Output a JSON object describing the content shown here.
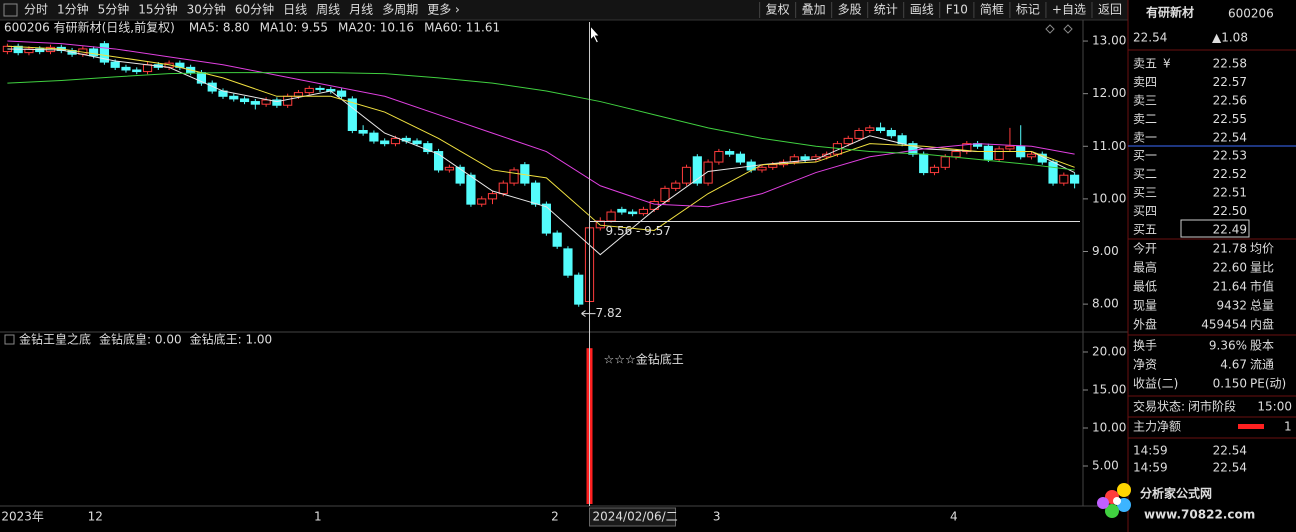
{
  "toolbar": {
    "left": [
      "分时",
      "1分钟",
      "5分钟",
      "15分钟",
      "30分钟",
      "60分钟",
      "日线",
      "周线",
      "月线",
      "多周期",
      "更多 ›"
    ],
    "selected_index": 6,
    "right": [
      "复权",
      "叠加",
      "多股",
      "统计",
      "画线",
      "F10",
      "简框",
      "标记",
      "+自选",
      "返回"
    ]
  },
  "main": {
    "type": "candlestick",
    "title": "600206 有研新材(日线,前复权)",
    "up_color": "#ff3c3c",
    "down_color": "#54fcfc",
    "grid": false,
    "ylim": [
      7.47,
      13.21
    ],
    "yticks": [
      {
        "value": 8,
        "label": "8.00"
      },
      {
        "value": 9,
        "label": "9.00"
      },
      {
        "value": 10,
        "label": "10.00"
      },
      {
        "value": 11,
        "label": "11.00"
      },
      {
        "value": 12,
        "label": "12.00"
      },
      {
        "value": 13,
        "label": "13.00"
      }
    ],
    "candles": [
      [
        12.8,
        12.95,
        12.75,
        12.9
      ],
      [
        12.9,
        12.95,
        12.73,
        12.78
      ],
      [
        12.78,
        12.9,
        12.73,
        12.85
      ],
      [
        12.85,
        12.9,
        12.75,
        12.8
      ],
      [
        12.8,
        12.93,
        12.75,
        12.88
      ],
      [
        12.88,
        12.93,
        12.77,
        12.82
      ],
      [
        12.82,
        12.87,
        12.7,
        12.75
      ],
      [
        12.75,
        12.9,
        12.7,
        12.85
      ],
      [
        12.85,
        12.9,
        12.67,
        12.72
      ],
      [
        12.95,
        13.0,
        12.55,
        12.6
      ],
      [
        12.6,
        12.65,
        12.45,
        12.5
      ],
      [
        12.5,
        12.55,
        12.4,
        12.45
      ],
      [
        12.45,
        12.5,
        12.37,
        12.42
      ],
      [
        12.42,
        12.6,
        12.37,
        12.55
      ],
      [
        12.55,
        12.6,
        12.45,
        12.5
      ],
      [
        12.5,
        12.63,
        12.45,
        12.58
      ],
      [
        12.58,
        12.63,
        12.45,
        12.5
      ],
      [
        12.5,
        12.55,
        12.35,
        12.4
      ],
      [
        12.4,
        12.45,
        12.15,
        12.2
      ],
      [
        12.2,
        12.25,
        12.0,
        12.05
      ],
      [
        12.05,
        12.1,
        11.9,
        11.95
      ],
      [
        11.95,
        12.0,
        11.85,
        11.9
      ],
      [
        11.9,
        11.95,
        11.8,
        11.85
      ],
      [
        11.85,
        11.9,
        11.7,
        11.8
      ],
      [
        11.8,
        11.93,
        11.75,
        11.88
      ],
      [
        11.88,
        11.93,
        11.73,
        11.78
      ],
      [
        11.78,
        12.0,
        11.73,
        11.95
      ],
      [
        11.95,
        12.07,
        11.9,
        12.02
      ],
      [
        12.02,
        12.15,
        11.97,
        12.1
      ],
      [
        12.1,
        12.15,
        12.03,
        12.08
      ],
      [
        12.08,
        12.13,
        12.0,
        12.05
      ],
      [
        12.05,
        12.1,
        11.9,
        11.95
      ],
      [
        11.9,
        11.95,
        11.25,
        11.3
      ],
      [
        11.3,
        11.4,
        11.2,
        11.25
      ],
      [
        11.25,
        11.3,
        11.05,
        11.1
      ],
      [
        11.1,
        11.15,
        11.0,
        11.05
      ],
      [
        11.05,
        11.2,
        11.0,
        11.15
      ],
      [
        11.15,
        11.2,
        11.05,
        11.1
      ],
      [
        11.1,
        11.15,
        11.0,
        11.05
      ],
      [
        11.05,
        11.1,
        10.85,
        10.9
      ],
      [
        10.9,
        10.95,
        10.5,
        10.55
      ],
      [
        10.55,
        10.65,
        10.5,
        10.6
      ],
      [
        10.6,
        10.65,
        10.25,
        10.3
      ],
      [
        10.45,
        10.5,
        9.85,
        9.9
      ],
      [
        9.9,
        10.05,
        9.85,
        10.0
      ],
      [
        10.0,
        10.15,
        9.9,
        10.1
      ],
      [
        10.1,
        10.35,
        10.05,
        10.3
      ],
      [
        10.3,
        10.6,
        10.25,
        10.55
      ],
      [
        10.65,
        10.7,
        10.25,
        10.3
      ],
      [
        10.3,
        10.35,
        9.85,
        9.9
      ],
      [
        9.9,
        9.95,
        9.3,
        9.35
      ],
      [
        9.35,
        9.4,
        9.05,
        9.1
      ],
      [
        9.05,
        9.1,
        8.5,
        8.55
      ],
      [
        8.55,
        8.6,
        7.95,
        8.0
      ],
      [
        8.05,
        9.5,
        7.82,
        9.45
      ],
      [
        9.45,
        9.65,
        9.4,
        9.58
      ],
      [
        9.58,
        9.8,
        9.55,
        9.75
      ],
      [
        9.8,
        9.85,
        9.7,
        9.75
      ],
      [
        9.75,
        9.8,
        9.67,
        9.72
      ],
      [
        9.72,
        9.85,
        9.68,
        9.8
      ],
      [
        9.8,
        10.0,
        9.75,
        9.95
      ],
      [
        9.95,
        10.25,
        9.9,
        10.2
      ],
      [
        10.2,
        10.35,
        10.15,
        10.3
      ],
      [
        10.3,
        10.65,
        10.25,
        10.6
      ],
      [
        10.8,
        10.85,
        10.25,
        10.3
      ],
      [
        10.3,
        10.75,
        10.25,
        10.7
      ],
      [
        10.7,
        10.95,
        10.65,
        10.9
      ],
      [
        10.9,
        10.95,
        10.8,
        10.85
      ],
      [
        10.85,
        10.9,
        10.65,
        10.7
      ],
      [
        10.7,
        10.75,
        10.5,
        10.55
      ],
      [
        10.55,
        10.65,
        10.5,
        10.6
      ],
      [
        10.6,
        10.7,
        10.55,
        10.65
      ],
      [
        10.65,
        10.75,
        10.6,
        10.7
      ],
      [
        10.7,
        10.85,
        10.65,
        10.8
      ],
      [
        10.8,
        10.85,
        10.7,
        10.75
      ],
      [
        10.75,
        10.85,
        10.7,
        10.8
      ],
      [
        10.8,
        10.9,
        10.75,
        10.85
      ],
      [
        10.85,
        11.1,
        10.8,
        11.05
      ],
      [
        11.05,
        11.2,
        11.0,
        11.15
      ],
      [
        11.15,
        11.35,
        11.1,
        11.3
      ],
      [
        11.3,
        11.4,
        11.25,
        11.35
      ],
      [
        11.35,
        11.45,
        11.25,
        11.3
      ],
      [
        11.3,
        11.35,
        11.15,
        11.2
      ],
      [
        11.2,
        11.25,
        11.0,
        11.05
      ],
      [
        11.05,
        11.1,
        10.8,
        10.85
      ],
      [
        10.85,
        10.9,
        10.45,
        10.5
      ],
      [
        10.5,
        10.65,
        10.45,
        10.6
      ],
      [
        10.6,
        10.85,
        10.55,
        10.8
      ],
      [
        10.8,
        10.95,
        10.75,
        10.9
      ],
      [
        10.9,
        11.1,
        10.85,
        11.05
      ],
      [
        11.05,
        11.1,
        10.95,
        11.0
      ],
      [
        11.0,
        11.05,
        10.7,
        10.75
      ],
      [
        10.75,
        11.0,
        10.7,
        10.95
      ],
      [
        10.95,
        11.35,
        10.9,
        11.0
      ],
      [
        11.0,
        11.4,
        10.75,
        10.8
      ],
      [
        10.8,
        10.9,
        10.75,
        10.85
      ],
      [
        10.85,
        10.9,
        10.65,
        10.7
      ],
      [
        10.7,
        10.75,
        10.25,
        10.3
      ],
      [
        10.3,
        10.5,
        10.25,
        10.45
      ],
      [
        10.45,
        10.5,
        10.2,
        10.3
      ]
    ],
    "ma_x": [
      0,
      5,
      10,
      15,
      20,
      25,
      30,
      35,
      40,
      45,
      50,
      55,
      60,
      65,
      70,
      75,
      80,
      85,
      90,
      95,
      99
    ],
    "ma": [
      {
        "name": "MA5: 8.80",
        "color": "#e8e8e8",
        "values": [
          12.85,
          12.83,
          12.62,
          12.5,
          12.05,
          11.85,
          12.05,
          11.25,
          10.85,
          10.15,
          9.85,
          8.94,
          9.79,
          10.52,
          10.65,
          10.75,
          11.2,
          10.95,
          10.9,
          10.9,
          10.5
        ]
      },
      {
        "name": "MA10: 9.55",
        "color": "#f0e040",
        "values": [
          12.9,
          12.85,
          12.7,
          12.55,
          12.3,
          11.95,
          11.95,
          11.65,
          11.15,
          10.55,
          10.4,
          9.5,
          9.4,
          10.1,
          10.65,
          10.7,
          11.05,
          11.0,
          10.9,
          10.9,
          10.6
        ]
      },
      {
        "name": "MA20: 10.16",
        "color": "#e040e0",
        "values": [
          13.0,
          12.95,
          12.85,
          12.7,
          12.55,
          12.35,
          12.15,
          11.95,
          11.6,
          11.25,
          10.9,
          10.25,
          9.9,
          9.85,
          10.1,
          10.5,
          10.8,
          10.95,
          11.05,
          11.0,
          10.85
        ]
      },
      {
        "name": "MA60: 11.61",
        "color": "#40d040",
        "values": [
          12.2,
          12.25,
          12.32,
          12.38,
          12.4,
          12.4,
          12.4,
          12.38,
          12.3,
          12.2,
          12.05,
          11.85,
          11.6,
          11.35,
          11.15,
          11.0,
          10.9,
          10.85,
          10.75,
          10.65,
          10.55
        ]
      }
    ],
    "low_index": 54,
    "level_line": {
      "value": 9.57,
      "label": "9.56 - 9.57"
    }
  },
  "cursor": {
    "index": 54,
    "label": "2024/02/06/二"
  },
  "x_labels": [
    {
      "at": 0,
      "label": "2023年"
    },
    {
      "at": 8,
      "label": "12"
    },
    {
      "at": 29,
      "label": "1"
    },
    {
      "at": 51,
      "label": "2"
    },
    {
      "at": 66,
      "label": "3"
    },
    {
      "at": 88,
      "label": "4"
    }
  ],
  "indicator": {
    "type": "bar",
    "title": "金钻王皇之底",
    "legend": [
      {
        "text": "金钻底皇: 0.00",
        "color": "#e040e0"
      },
      {
        "text": "金钻底王: 1.00",
        "color": "#ff3c3c"
      }
    ],
    "bars": [
      {
        "index": 54,
        "value": 20.5
      }
    ],
    "color": "#ff2020",
    "signal_label": "☆☆☆金钻底王",
    "ylim": [
      0,
      21.84
    ],
    "yticks": [
      {
        "value": 5,
        "label": "5.00"
      },
      {
        "value": 10,
        "label": "10.00"
      },
      {
        "value": 15,
        "label": "15.00"
      },
      {
        "value": 20,
        "label": "20.00"
      }
    ]
  },
  "quote": {
    "name": "有研新材",
    "code": "600206",
    "price": "22.54",
    "change": "▲1.08",
    "currency": "¥",
    "sell": [
      [
        "卖五",
        "22.58"
      ],
      [
        "卖四",
        "22.57"
      ],
      [
        "卖三",
        "22.56"
      ],
      [
        "卖二",
        "22.55"
      ],
      [
        "卖一",
        "22.54"
      ]
    ],
    "buy": [
      [
        "买一",
        "22.53"
      ],
      [
        "买二",
        "22.52"
      ],
      [
        "买三",
        "22.51"
      ],
      [
        "买四",
        "22.50"
      ],
      [
        "买五",
        "22.49"
      ]
    ],
    "stats": [
      {
        "label": "今开",
        "value": "21.78",
        "unit": "均价",
        "color": "#ff4040"
      },
      {
        "label": "最高",
        "value": "22.60",
        "unit": "量比",
        "color": "#ff4040"
      },
      {
        "label": "最低",
        "value": "21.64",
        "unit": "市值",
        "color": "#ff4040"
      },
      {
        "label": "现量",
        "value": "9432",
        "unit": "总量",
        "color": "#c060ff"
      },
      {
        "label": "外盘",
        "value": "459454",
        "unit": "内盘",
        "color": "#ff4040"
      }
    ],
    "stats2": [
      {
        "label": "换手",
        "value": "9.36%",
        "unit": "股本",
        "color": "#e0e0e0"
      },
      {
        "label": "净资",
        "value": "4.67",
        "unit": "流通",
        "color": "#e0e0e0"
      },
      {
        "label": "收益(二)",
        "value": "0.150",
        "unit": "PE(动)",
        "color": "#e0e0e0"
      }
    ],
    "status": {
      "label": "交易状态:",
      "value": "闭市阶段",
      "time": "15:00"
    },
    "main_force": {
      "label": "主力净额",
      "value": "1"
    },
    "ticks": [
      [
        "14:59",
        "22.54"
      ],
      [
        "14:59",
        "22.54"
      ]
    ]
  },
  "watermark": {
    "name": "分析家公式网",
    "url": "www.70822.com"
  }
}
